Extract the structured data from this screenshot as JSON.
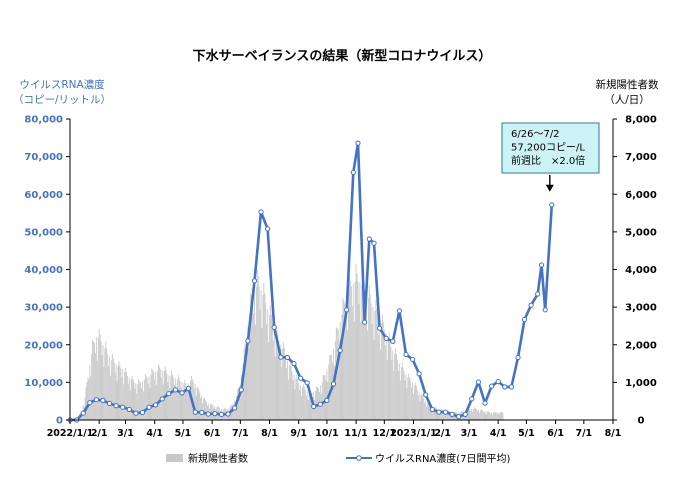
{
  "chart_data": {
    "type": "bar+line",
    "title": "下水サーベイランスの結果（新型コロナウイルス）",
    "ylabel_left": [
      "ウイルスRNA濃度",
      "（コピー/リットル）"
    ],
    "ylabel_right": [
      "新規陽性者数",
      "（人/日）"
    ],
    "ylim_left": [
      0,
      80000
    ],
    "ylim_right": [
      0,
      8000
    ],
    "y_ticks_left": [
      "0",
      "10,000",
      "20,000",
      "30,000",
      "40,000",
      "50,000",
      "60,000",
      "70,000",
      "80,000"
    ],
    "y_ticks_right": [
      "0",
      "1,000",
      "2,000",
      "3,000",
      "4,000",
      "5,000",
      "6,000",
      "7,000",
      "8,000"
    ],
    "x_ticks": [
      "2022/1/1",
      "2/1",
      "3/1",
      "4/1",
      "5/1",
      "6/1",
      "7/1",
      "8/1",
      "9/1",
      "10/1",
      "11/1",
      "12/1",
      "2023/1/1",
      "2/1",
      "3/1",
      "4/1",
      "5/1",
      "6/1",
      "7/1",
      "8/1"
    ],
    "x_range_days": [
      0,
      577
    ],
    "grid": false,
    "legend_position": "bottom",
    "legend": [
      "新規陽性者数",
      "ウイルスRNA濃度(7日間平均)"
    ],
    "series": [
      {
        "name": "ウイルスRNA濃度(7日間平均)",
        "axis": "left",
        "color": "#4472c4",
        "points": [
          [
            0,
            0
          ],
          [
            7,
            0
          ],
          [
            14,
            1800
          ],
          [
            21,
            4600
          ],
          [
            28,
            5400
          ],
          [
            35,
            5200
          ],
          [
            42,
            4400
          ],
          [
            49,
            3800
          ],
          [
            56,
            3400
          ],
          [
            63,
            2800
          ],
          [
            70,
            1800
          ],
          [
            77,
            2000
          ],
          [
            84,
            3400
          ],
          [
            91,
            4000
          ],
          [
            98,
            5600
          ],
          [
            105,
            7000
          ],
          [
            112,
            8000
          ],
          [
            119,
            7200
          ],
          [
            126,
            8400
          ],
          [
            133,
            2100
          ],
          [
            140,
            2000
          ],
          [
            147,
            1600
          ],
          [
            154,
            1700
          ],
          [
            161,
            1500
          ],
          [
            168,
            1600
          ],
          [
            175,
            3200
          ],
          [
            182,
            8000
          ],
          [
            189,
            21000
          ],
          [
            196,
            37000
          ],
          [
            203,
            55300
          ],
          [
            210,
            50800
          ],
          [
            217,
            24600
          ],
          [
            224,
            16700
          ],
          [
            231,
            16600
          ],
          [
            238,
            15000
          ],
          [
            245,
            11100
          ],
          [
            252,
            9900
          ],
          [
            259,
            3600
          ],
          [
            266,
            4200
          ],
          [
            273,
            5200
          ],
          [
            280,
            9600
          ],
          [
            287,
            18500
          ],
          [
            294,
            29300
          ],
          [
            301,
            65800
          ],
          [
            306,
            73600
          ],
          [
            313,
            26000
          ],
          [
            318,
            48100
          ],
          [
            323,
            47000
          ],
          [
            329,
            24400
          ],
          [
            336,
            21700
          ],
          [
            343,
            20900
          ],
          [
            350,
            29000
          ],
          [
            357,
            17400
          ],
          [
            364,
            16100
          ],
          [
            371,
            12300
          ],
          [
            378,
            6700
          ],
          [
            385,
            2800
          ],
          [
            392,
            2100
          ],
          [
            399,
            2100
          ],
          [
            406,
            1500
          ],
          [
            413,
            900
          ],
          [
            420,
            1500
          ],
          [
            427,
            5600
          ],
          [
            434,
            10100
          ],
          [
            441,
            4500
          ],
          [
            448,
            9000
          ],
          [
            455,
            10200
          ],
          [
            462,
            8800
          ],
          [
            469,
            8800
          ],
          [
            476,
            16600
          ],
          [
            483,
            26700
          ],
          [
            490,
            30500
          ],
          [
            497,
            33500
          ],
          [
            501,
            41200
          ],
          [
            505,
            29300
          ],
          [
            512,
            57200
          ]
        ]
      },
      {
        "name": "新規陽性者数",
        "axis": "right",
        "color": "#c8c8c8",
        "points": [
          [
            0,
            20
          ],
          [
            7,
            60
          ],
          [
            12,
            200
          ],
          [
            16,
            600
          ],
          [
            20,
            1300
          ],
          [
            24,
            1900
          ],
          [
            28,
            2200
          ],
          [
            32,
            2150
          ],
          [
            36,
            1950
          ],
          [
            40,
            1750
          ],
          [
            44,
            1600
          ],
          [
            48,
            1500
          ],
          [
            52,
            1400
          ],
          [
            56,
            1350
          ],
          [
            60,
            1200
          ],
          [
            64,
            1100
          ],
          [
            68,
            1000
          ],
          [
            72,
            950
          ],
          [
            76,
            1000
          ],
          [
            80,
            1100
          ],
          [
            84,
            1150
          ],
          [
            88,
            1250
          ],
          [
            92,
            1300
          ],
          [
            96,
            1350
          ],
          [
            100,
            1300
          ],
          [
            104,
            1200
          ],
          [
            108,
            1150
          ],
          [
            112,
            1100
          ],
          [
            116,
            1050
          ],
          [
            120,
            1000
          ],
          [
            124,
            900
          ],
          [
            128,
            1050
          ],
          [
            132,
            1000
          ],
          [
            136,
            800
          ],
          [
            140,
            650
          ],
          [
            144,
            500
          ],
          [
            148,
            420
          ],
          [
            152,
            380
          ],
          [
            156,
            340
          ],
          [
            160,
            300
          ],
          [
            164,
            280
          ],
          [
            168,
            300
          ],
          [
            172,
            380
          ],
          [
            176,
            550
          ],
          [
            180,
            900
          ],
          [
            184,
            1500
          ],
          [
            188,
            2300
          ],
          [
            192,
            3000
          ],
          [
            196,
            3500
          ],
          [
            200,
            3600
          ],
          [
            204,
            3400
          ],
          [
            208,
            3100
          ],
          [
            212,
            2800
          ],
          [
            216,
            2500
          ],
          [
            220,
            2200
          ],
          [
            224,
            2000
          ],
          [
            228,
            1800
          ],
          [
            232,
            1500
          ],
          [
            236,
            1300
          ],
          [
            240,
            1100
          ],
          [
            244,
            950
          ],
          [
            248,
            850
          ],
          [
            252,
            750
          ],
          [
            256,
            700
          ],
          [
            260,
            750
          ],
          [
            264,
            850
          ],
          [
            268,
            1000
          ],
          [
            272,
            1250
          ],
          [
            276,
            1550
          ],
          [
            280,
            1900
          ],
          [
            284,
            2300
          ],
          [
            288,
            2700
          ],
          [
            292,
            3100
          ],
          [
            296,
            3400
          ],
          [
            300,
            3600
          ],
          [
            304,
            3700
          ],
          [
            308,
            3650
          ],
          [
            312,
            3500
          ],
          [
            316,
            3300
          ],
          [
            320,
            3100
          ],
          [
            324,
            2900
          ],
          [
            328,
            2700
          ],
          [
            332,
            2500
          ],
          [
            336,
            2300
          ],
          [
            340,
            2000
          ],
          [
            344,
            1800
          ],
          [
            348,
            1600
          ],
          [
            352,
            1400
          ],
          [
            356,
            1250
          ],
          [
            360,
            1100
          ],
          [
            364,
            1000
          ],
          [
            368,
            850
          ],
          [
            372,
            700
          ],
          [
            376,
            560
          ],
          [
            380,
            450
          ],
          [
            384,
            370
          ],
          [
            388,
            320
          ],
          [
            392,
            280
          ],
          [
            396,
            250
          ],
          [
            400,
            230
          ],
          [
            404,
            220
          ],
          [
            408,
            200
          ],
          [
            412,
            200
          ],
          [
            416,
            210
          ],
          [
            420,
            240
          ],
          [
            424,
            280
          ],
          [
            428,
            300
          ],
          [
            432,
            290
          ],
          [
            436,
            260
          ],
          [
            440,
            230
          ],
          [
            444,
            210
          ],
          [
            448,
            200
          ],
          [
            452,
            190
          ],
          [
            456,
            200
          ],
          [
            460,
            190
          ]
        ]
      }
    ],
    "annotation": {
      "lines": [
        "6/26～7/2",
        "57,200コピー/L",
        "前週比　×2.0倍"
      ],
      "target_day": 512,
      "target_value": 57200
    }
  }
}
